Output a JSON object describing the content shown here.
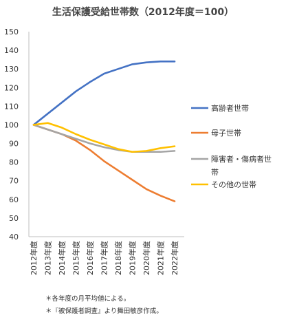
{
  "chart_data": {
    "type": "line",
    "title": "生活保護受給世帯数（2012年度＝100）",
    "categories": [
      "2012年度",
      "2013年度",
      "2014年度",
      "2015年度",
      "2016年度",
      "2017年度",
      "2018年度",
      "2019年度",
      "2020年度",
      "2021年度",
      "2022年度"
    ],
    "series": [
      {
        "name": "高齢者世帯",
        "color": "#4472C4",
        "values": [
          100,
          106,
          112,
          118,
          123,
          127.5,
          130,
          132.5,
          133.5,
          134,
          134
        ]
      },
      {
        "name": "母子世帯",
        "color": "#ED7D31",
        "values": [
          100,
          97.5,
          95,
          91.5,
          86.5,
          80.5,
          75.5,
          70.5,
          65.5,
          62,
          59
        ]
      },
      {
        "name": "障害者・傷病者世帯",
        "color": "#A5A5A5",
        "values": [
          100,
          97.5,
          95,
          92.5,
          90,
          88,
          86.5,
          85.5,
          85.5,
          85.5,
          86
        ]
      },
      {
        "name": "その他の世帯",
        "color": "#FFC000",
        "values": [
          100,
          101,
          98.5,
          95,
          92,
          89.5,
          87,
          85.5,
          86,
          87.5,
          88.5
        ]
      }
    ],
    "yticks": [
      40,
      50,
      60,
      70,
      80,
      90,
      100,
      110,
      120,
      130,
      140,
      150
    ],
    "ylim": [
      40,
      150
    ],
    "xlabel": "",
    "ylabel": "",
    "grid": false,
    "legend_position": "right"
  },
  "notes": [
    "＊各年度の月平均値による。",
    "＊『被保護者調査』より舞田敏彦作成。"
  ]
}
